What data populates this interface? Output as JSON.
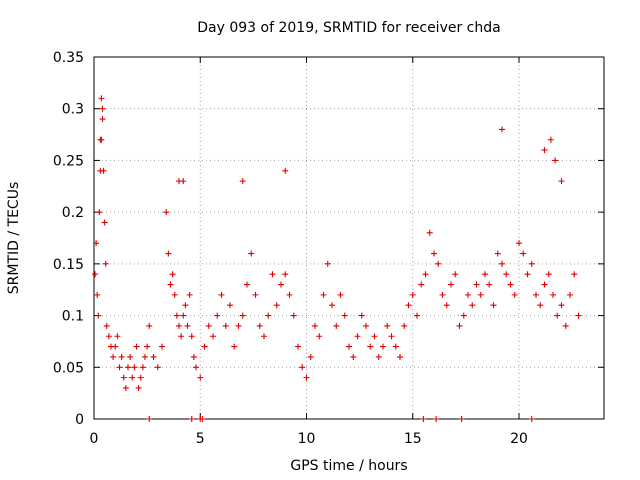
{
  "chart_data": {
    "type": "scatter",
    "title": "Day 093 of 2019, SRMTID for receiver chda",
    "xlabel": "GPS time / hours",
    "ylabel": "SRMTID / TECUs",
    "xlim": [
      0,
      24
    ],
    "ylim": [
      0,
      0.35
    ],
    "xticks": [
      0,
      5,
      10,
      15,
      20
    ],
    "xtick_labels": [
      "0",
      "5",
      "10",
      "15",
      "20"
    ],
    "yticks": [
      0,
      0.05,
      0.1,
      0.15,
      0.2,
      0.25,
      0.3,
      0.35
    ],
    "ytick_labels": [
      "0",
      "0.05",
      "0.1",
      "0.15",
      "0.2",
      "0.25",
      "0.3",
      "0.35"
    ],
    "grid": true,
    "marker": "+",
    "color": "#e00000",
    "series": [
      {
        "name": "SRMTID",
        "x": [
          0.05,
          0.1,
          0.15,
          0.2,
          0.25,
          0.3,
          0.35,
          0.4,
          0.45,
          0.5,
          0.55,
          0.6,
          0.7,
          0.8,
          0.9,
          1.0,
          1.1,
          1.2,
          1.3,
          1.4,
          1.5,
          1.6,
          1.7,
          1.8,
          1.9,
          2.0,
          2.1,
          2.2,
          2.3,
          2.4,
          2.5,
          2.6,
          2.8,
          3.0,
          3.2,
          3.4,
          3.5,
          3.6,
          3.7,
          3.8,
          3.9,
          4.0,
          4.1,
          4.2,
          4.3,
          4.4,
          4.5,
          4.6,
          4.7,
          4.8,
          5.0,
          5.2,
          5.4,
          5.6,
          5.8,
          6.0,
          6.2,
          6.4,
          6.6,
          6.8,
          7.0,
          7.2,
          7.4,
          7.6,
          7.8,
          8.0,
          8.2,
          8.4,
          8.6,
          8.8,
          9.0,
          9.2,
          9.4,
          9.6,
          9.8,
          10.0,
          10.2,
          10.4,
          10.6,
          10.8,
          11.0,
          11.2,
          11.4,
          11.6,
          11.8,
          12.0,
          12.2,
          12.4,
          12.6,
          12.8,
          13.0,
          13.2,
          13.4,
          13.6,
          13.8,
          14.0,
          14.2,
          14.4,
          14.6,
          14.8,
          15.0,
          15.2,
          15.4,
          15.6,
          15.8,
          16.0,
          16.2,
          16.4,
          16.6,
          16.8,
          17.0,
          17.2,
          17.4,
          17.6,
          17.8,
          18.0,
          18.2,
          18.4,
          18.6,
          18.8,
          19.0,
          19.2,
          19.4,
          19.6,
          19.8,
          20.0,
          20.2,
          20.4,
          20.6,
          20.8,
          21.0,
          21.2,
          21.4,
          21.6,
          21.8,
          22.0,
          22.2,
          22.4,
          22.6,
          22.8,
          2.6,
          4.6,
          5.0,
          5.1,
          15.5,
          16.1,
          17.3,
          20.6,
          0.35,
          0.4,
          0.3,
          4.0,
          4.2,
          7.0,
          9.0,
          19.2,
          21.2,
          21.5,
          21.7,
          22.0
        ],
        "y": [
          0.14,
          0.17,
          0.12,
          0.1,
          0.2,
          0.24,
          0.27,
          0.3,
          0.24,
          0.19,
          0.15,
          0.09,
          0.08,
          0.07,
          0.06,
          0.07,
          0.08,
          0.05,
          0.06,
          0.04,
          0.03,
          0.05,
          0.06,
          0.04,
          0.05,
          0.07,
          0.03,
          0.04,
          0.05,
          0.06,
          0.07,
          0.09,
          0.06,
          0.05,
          0.07,
          0.2,
          0.16,
          0.13,
          0.14,
          0.12,
          0.1,
          0.09,
          0.08,
          0.1,
          0.11,
          0.09,
          0.12,
          0.08,
          0.06,
          0.05,
          0.04,
          0.07,
          0.09,
          0.08,
          0.1,
          0.12,
          0.09,
          0.11,
          0.07,
          0.09,
          0.1,
          0.13,
          0.16,
          0.12,
          0.09,
          0.08,
          0.1,
          0.14,
          0.11,
          0.13,
          0.14,
          0.12,
          0.1,
          0.07,
          0.05,
          0.04,
          0.06,
          0.09,
          0.08,
          0.12,
          0.15,
          0.11,
          0.09,
          0.12,
          0.1,
          0.07,
          0.06,
          0.08,
          0.1,
          0.09,
          0.07,
          0.08,
          0.06,
          0.07,
          0.09,
          0.08,
          0.07,
          0.06,
          0.09,
          0.11,
          0.12,
          0.1,
          0.13,
          0.14,
          0.18,
          0.16,
          0.15,
          0.12,
          0.11,
          0.13,
          0.14,
          0.09,
          0.1,
          0.12,
          0.11,
          0.13,
          0.12,
          0.14,
          0.13,
          0.11,
          0.16,
          0.15,
          0.14,
          0.13,
          0.12,
          0.17,
          0.16,
          0.14,
          0.15,
          0.12,
          0.11,
          0.13,
          0.14,
          0.12,
          0.1,
          0.11,
          0.09,
          0.12,
          0.14,
          0.1,
          0.0,
          0.0,
          0.0,
          0.0,
          0.0,
          0.0,
          0.0,
          0.0,
          0.31,
          0.29,
          0.27,
          0.23,
          0.23,
          0.23,
          0.24,
          0.28,
          0.26,
          0.27,
          0.25,
          0.23
        ]
      }
    ]
  }
}
